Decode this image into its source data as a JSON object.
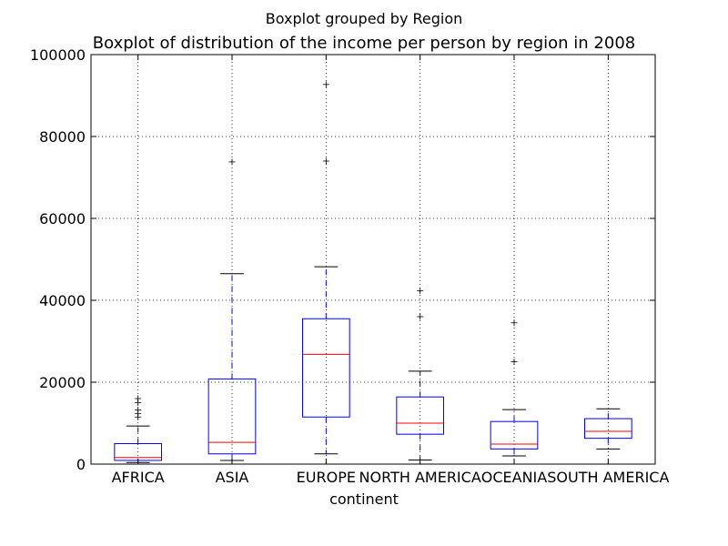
{
  "figure": {
    "suptitle": "Boxplot grouped by Region",
    "title": "Boxplot of distribution of the income per person by region in 2008"
  },
  "chart_data": {
    "type": "boxplot",
    "xlabel": "continent",
    "ylabel": "",
    "ylim": [
      0,
      100000
    ],
    "yticks": [
      0,
      20000,
      40000,
      60000,
      80000,
      100000
    ],
    "ytick_labels": [
      "0",
      "20000",
      "40000",
      "60000",
      "80000",
      "100000"
    ],
    "grid": true,
    "colors": {
      "box": "#0000ff",
      "median": "#ff0000",
      "whisker": "#0000ff",
      "cap": "#000000",
      "flier": "#000000"
    },
    "groups": [
      {
        "label": "AFRICA",
        "whisker_low": 400,
        "q1": 900,
        "median": 1600,
        "q3": 5000,
        "whisker_high": 9300,
        "fliers": [
          11500,
          12300,
          13200,
          15000,
          16000
        ]
      },
      {
        "label": "ASIA",
        "whisker_low": 900,
        "q1": 2500,
        "median": 5300,
        "q3": 20800,
        "whisker_high": 46500,
        "fliers": [
          73800
        ]
      },
      {
        "label": "EUROPE",
        "whisker_low": 2500,
        "q1": 11500,
        "median": 26800,
        "q3": 35500,
        "whisker_high": 48200,
        "fliers": [
          74000,
          92700
        ]
      },
      {
        "label": "NORTH AMERICA",
        "whisker_low": 1000,
        "q1": 7300,
        "median": 10000,
        "q3": 16400,
        "whisker_high": 22700,
        "fliers": [
          36000,
          42300
        ]
      },
      {
        "label": "OCEANIA",
        "whisker_low": 2000,
        "q1": 3700,
        "median": 4900,
        "q3": 10400,
        "whisker_high": 13300,
        "fliers": [
          25000,
          34500
        ]
      },
      {
        "label": "SOUTH AMERICA",
        "whisker_low": 3700,
        "q1": 6300,
        "median": 8000,
        "q3": 11100,
        "whisker_high": 13500,
        "fliers": []
      }
    ]
  }
}
